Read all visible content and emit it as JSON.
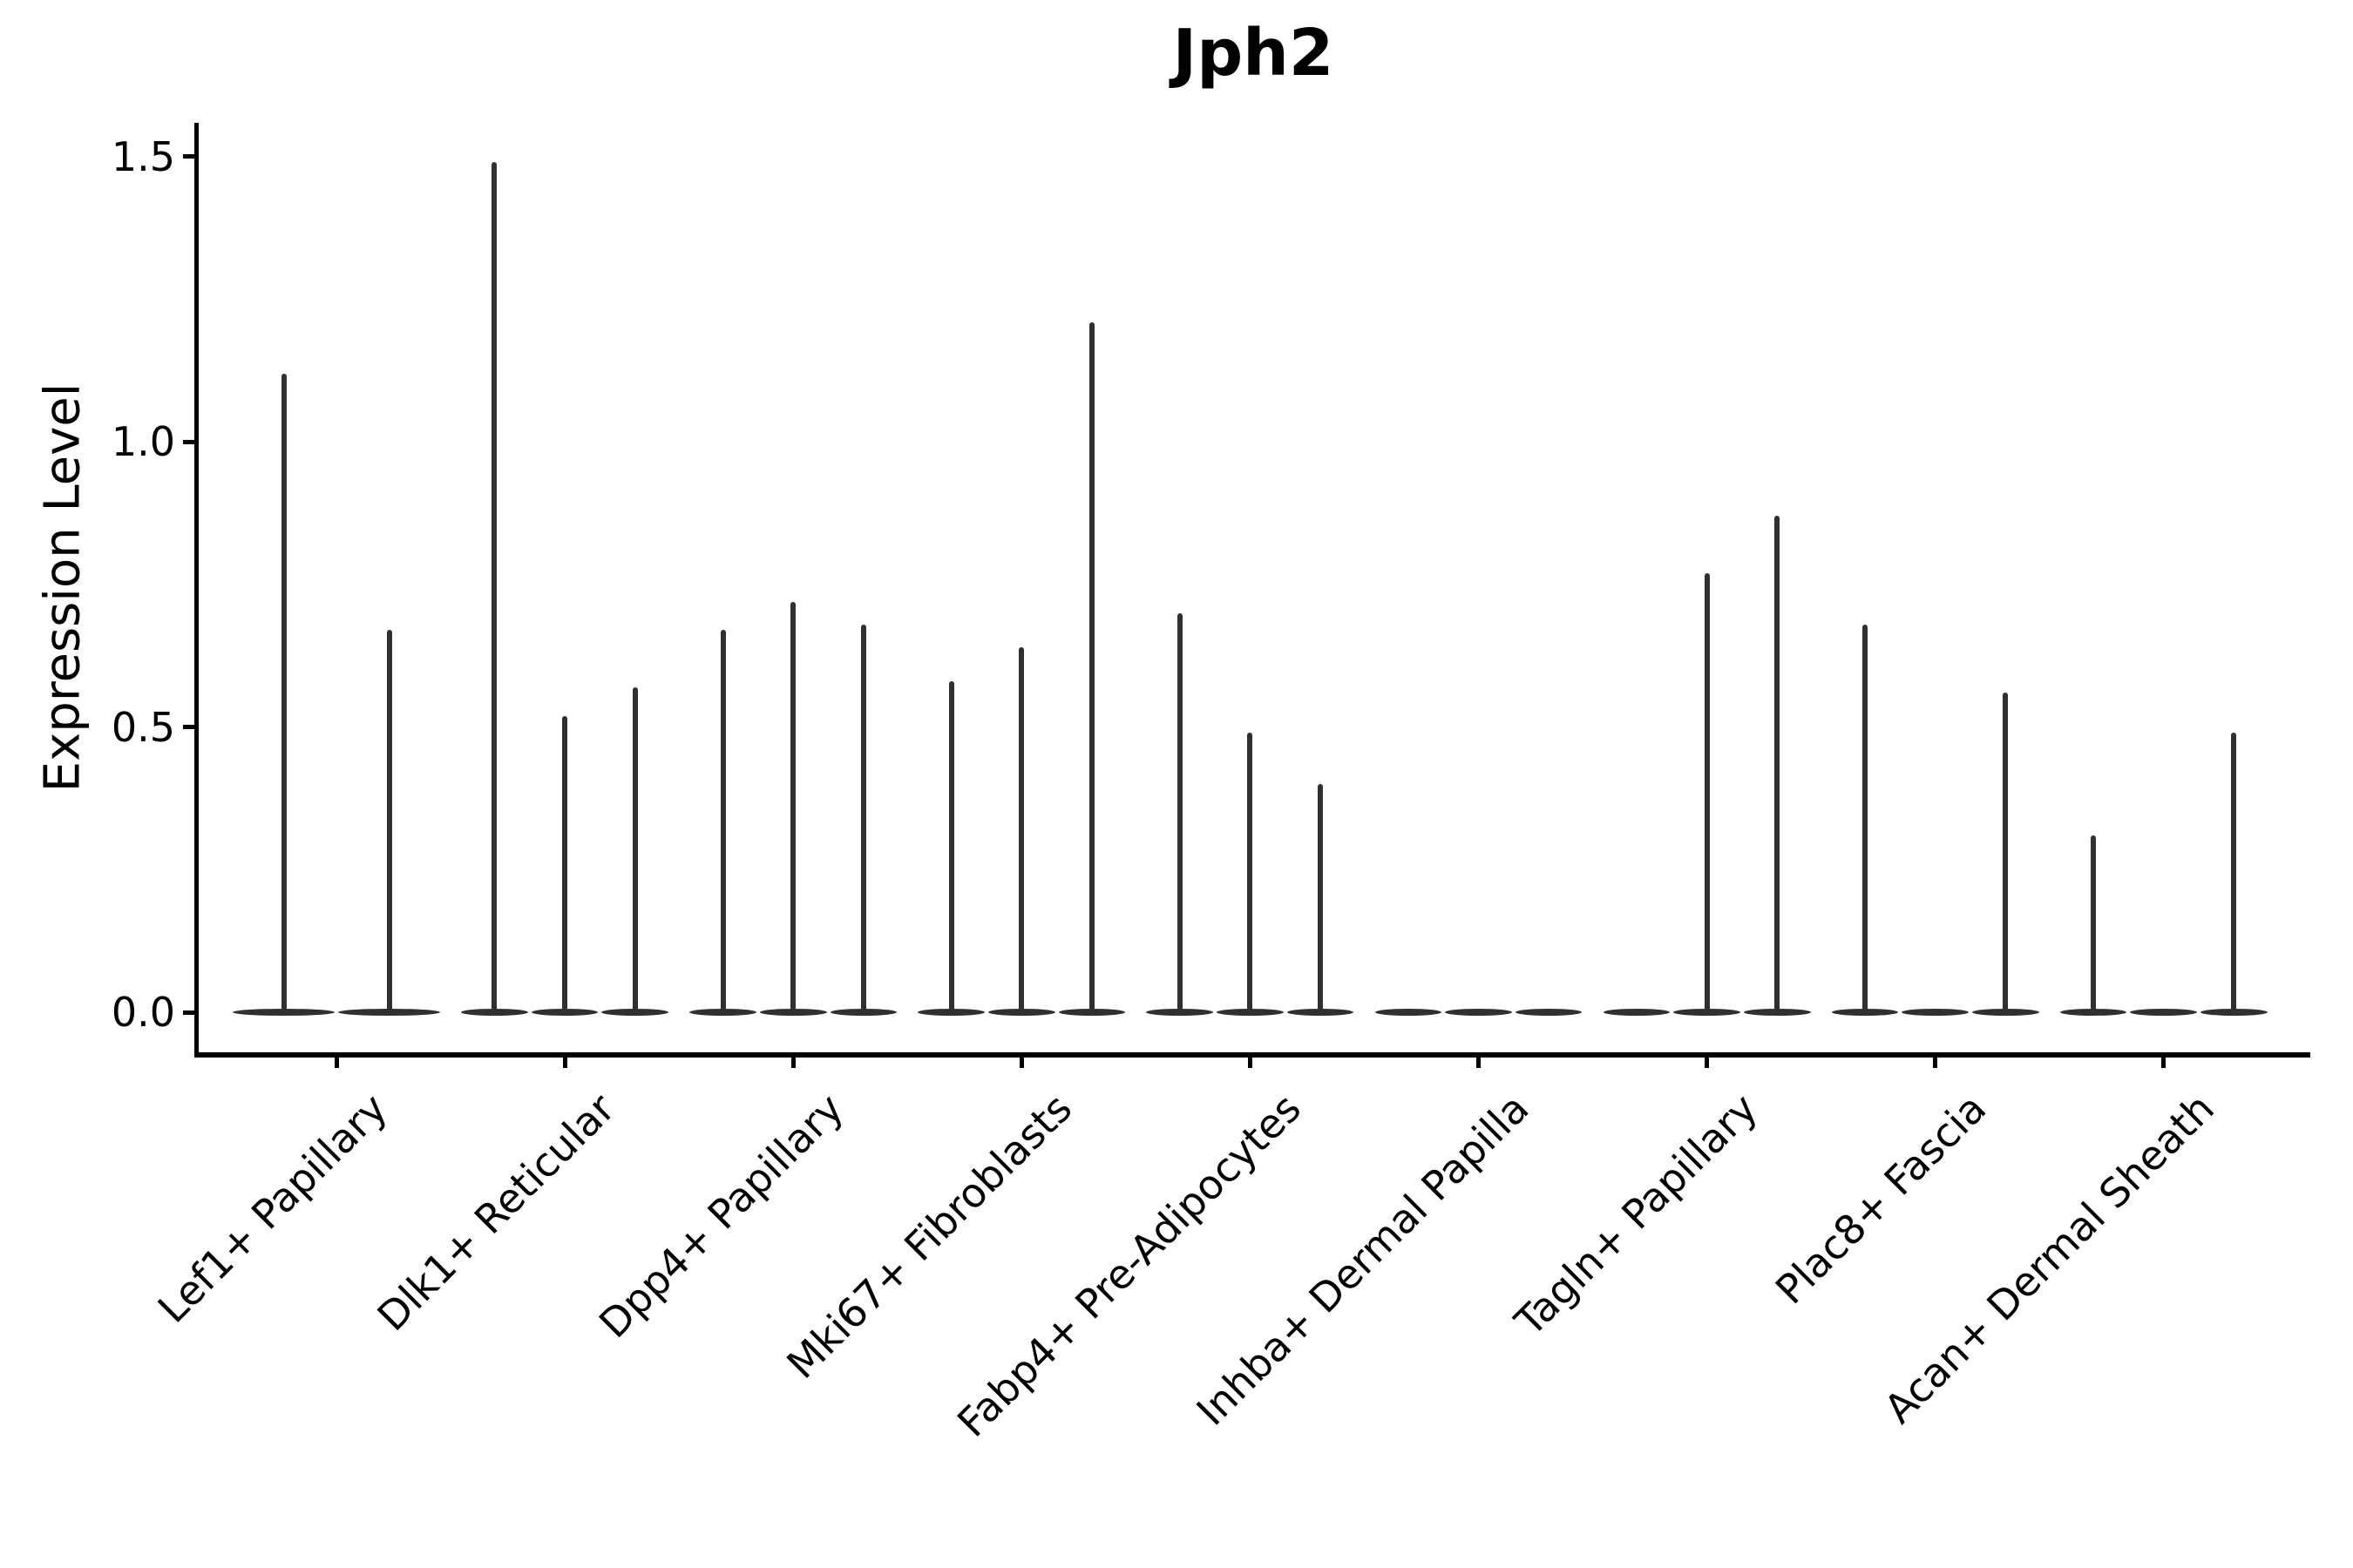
{
  "chart_data": {
    "type": "violin",
    "title": "Jph2",
    "ylabel": "Expression Level",
    "xlabel": "",
    "ylim": [
      0,
      1.55
    ],
    "grid": false,
    "legend": false,
    "yticks": {
      "values": [
        0,
        0.5,
        1.0,
        1.5
      ],
      "labels": [
        "0.0",
        "0.5",
        "1.0",
        "1.5"
      ]
    },
    "description": "Violin plot of Jph2 expression level per fibroblast cluster; each cluster contains 2-3 very narrow (spike-like) violins whose peak heights are listed in expression_peaks (0 = flat violin at baseline).",
    "categories": [
      "Lef1+ Papillary",
      "Dlk1+ Reticular",
      "Dpp4+ Papillary",
      "Mki67+ Fibroblasts",
      "Fabp4+ Pre-Adipocytes",
      "Inhba+ Dermal Papilla",
      "Tagln+ Papillary",
      "Plac8+ Fascia",
      "Acan+ Dermal Sheath"
    ],
    "groups": [
      {
        "label": "Lef1+ Papillary",
        "expression_peaks": [
          1.12,
          0.67
        ]
      },
      {
        "label": "Dlk1+ Reticular",
        "expression_peaks": [
          1.49,
          0.52,
          0.57
        ]
      },
      {
        "label": "Dpp4+ Papillary",
        "expression_peaks": [
          0.67,
          0.72,
          0.68
        ]
      },
      {
        "label": "Mki67+ Fibroblasts",
        "expression_peaks": [
          0.58,
          0.64,
          1.21
        ]
      },
      {
        "label": "Fabp4+ Pre-Adipocytes",
        "expression_peaks": [
          0.7,
          0.49,
          0.4
        ]
      },
      {
        "label": "Inhba+ Dermal Papilla",
        "expression_peaks": [
          0,
          0,
          0
        ]
      },
      {
        "label": "Tagln+ Papillary",
        "expression_peaks": [
          0,
          0.77,
          0.87
        ]
      },
      {
        "label": "Plac8+ Fascia",
        "expression_peaks": [
          0.68,
          0,
          0.56
        ]
      },
      {
        "label": "Acan+ Dermal Sheath",
        "expression_peaks": [
          0.31,
          0,
          0.49
        ]
      }
    ],
    "colors": {
      "violin": "#303030",
      "axis": "#000000",
      "text": "#000000",
      "background": "#ffffff"
    }
  }
}
